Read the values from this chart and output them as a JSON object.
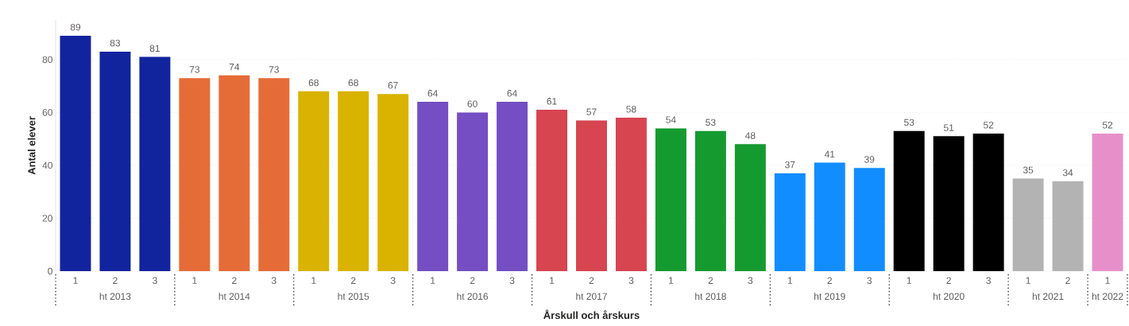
{
  "chart_data": {
    "type": "bar",
    "xlabel": "Årskull och årskurs",
    "ylabel": "Antal elever",
    "categories": [
      "1",
      "2",
      "3",
      "1",
      "2",
      "3",
      "1",
      "2",
      "3",
      "1",
      "2",
      "3",
      "1",
      "2",
      "3",
      "1",
      "2",
      "3",
      "1",
      "2",
      "3",
      "1",
      "2",
      "3",
      "1",
      "2",
      "1"
    ],
    "series": [
      {
        "name": "ht 2013",
        "color": "#12239e",
        "values": [
          89,
          83,
          81,
          null,
          null,
          null,
          null,
          null,
          null,
          null,
          null,
          null,
          null,
          null,
          null,
          null,
          null,
          null,
          null,
          null,
          null,
          null,
          null,
          null,
          null,
          null,
          null
        ]
      },
      {
        "name": "ht 2014",
        "color": "#e66c37",
        "values": [
          null,
          null,
          null,
          73,
          74,
          73,
          null,
          null,
          null,
          null,
          null,
          null,
          null,
          null,
          null,
          null,
          null,
          null,
          null,
          null,
          null,
          null,
          null,
          null,
          null,
          null,
          null
        ]
      },
      {
        "name": "ht 2015",
        "color": "#d9b300",
        "values": [
          null,
          null,
          null,
          null,
          null,
          null,
          68,
          68,
          67,
          null,
          null,
          null,
          null,
          null,
          null,
          null,
          null,
          null,
          null,
          null,
          null,
          null,
          null,
          null,
          null,
          null,
          null
        ]
      },
      {
        "name": "ht 2016",
        "color": "#744ec2",
        "values": [
          null,
          null,
          null,
          null,
          null,
          null,
          null,
          null,
          null,
          64,
          60,
          64,
          null,
          null,
          null,
          null,
          null,
          null,
          null,
          null,
          null,
          null,
          null,
          null,
          null,
          null,
          null
        ]
      },
      {
        "name": "ht 2017",
        "color": "#d64550",
        "values": [
          null,
          null,
          null,
          null,
          null,
          null,
          null,
          null,
          null,
          null,
          null,
          null,
          61,
          57,
          58,
          null,
          null,
          null,
          null,
          null,
          null,
          null,
          null,
          null,
          null,
          null,
          null
        ]
      },
      {
        "name": "ht 2018",
        "color": "#159a30",
        "values": [
          null,
          null,
          null,
          null,
          null,
          null,
          null,
          null,
          null,
          null,
          null,
          null,
          null,
          null,
          null,
          54,
          53,
          48,
          null,
          null,
          null,
          null,
          null,
          null,
          null,
          null,
          null
        ]
      },
      {
        "name": "ht 2019",
        "color": "#118dff",
        "values": [
          null,
          null,
          null,
          null,
          null,
          null,
          null,
          null,
          null,
          null,
          null,
          null,
          null,
          null,
          null,
          null,
          null,
          null,
          37,
          41,
          39,
          null,
          null,
          null,
          null,
          null,
          null
        ]
      },
      {
        "name": "ht 2020",
        "color": "#000000",
        "values": [
          null,
          null,
          null,
          null,
          null,
          null,
          null,
          null,
          null,
          null,
          null,
          null,
          null,
          null,
          null,
          null,
          null,
          null,
          null,
          null,
          null,
          53,
          51,
          52,
          null,
          null,
          null
        ]
      },
      {
        "name": "ht 2021",
        "color": "#b3b3b3",
        "values": [
          null,
          null,
          null,
          null,
          null,
          null,
          null,
          null,
          null,
          null,
          null,
          null,
          null,
          null,
          null,
          null,
          null,
          null,
          null,
          null,
          null,
          null,
          null,
          null,
          35,
          34,
          null
        ]
      },
      {
        "name": "ht 2022",
        "color": "#e78fc9",
        "values": [
          null,
          null,
          null,
          null,
          null,
          null,
          null,
          null,
          null,
          null,
          null,
          null,
          null,
          null,
          null,
          null,
          null,
          null,
          null,
          null,
          null,
          null,
          null,
          null,
          null,
          null,
          52
        ]
      }
    ],
    "ylim": [
      0,
      95
    ],
    "yticks": [
      0,
      20,
      40,
      60,
      80
    ],
    "grid": "y",
    "data_labels": true
  }
}
